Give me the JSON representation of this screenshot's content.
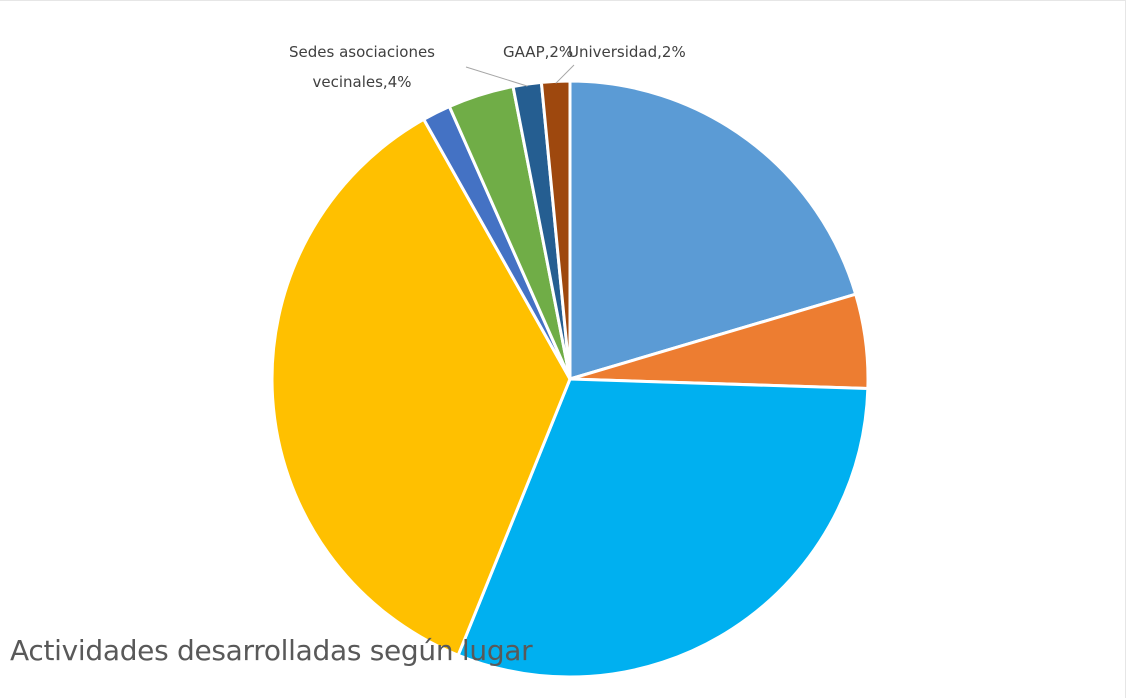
{
  "chart_data": {
    "type": "pie",
    "title": "Actividades desarrolladas según lugar",
    "start_angle_deg": 0,
    "direction": "clockwise",
    "slices": [
      {
        "name": "",
        "value": 20,
        "color": "#5B9BD5"
      },
      {
        "name": "",
        "value": 5,
        "color": "#ED7D31"
      },
      {
        "name": "",
        "value": 30,
        "color": "#00B0F0"
      },
      {
        "name": "",
        "value": 35,
        "color": "#FFC000"
      },
      {
        "name": "",
        "value": 1.5,
        "color": "#4472C4"
      },
      {
        "name": "",
        "value": 3.5,
        "color": "#70AD47"
      },
      {
        "name": "",
        "value": 1.5,
        "color": "#255E91"
      },
      {
        "name": "",
        "value": 1.5,
        "color": "#9E480E"
      }
    ],
    "labels": [
      {
        "slice": 5,
        "lines": [
          "Sedes asociaciones",
          "vecinales,4%"
        ]
      },
      {
        "slice": 6,
        "lines": [
          "GAAP,2%"
        ]
      },
      {
        "slice": 7,
        "lines": [
          "Universidad,2%"
        ]
      }
    ]
  }
}
